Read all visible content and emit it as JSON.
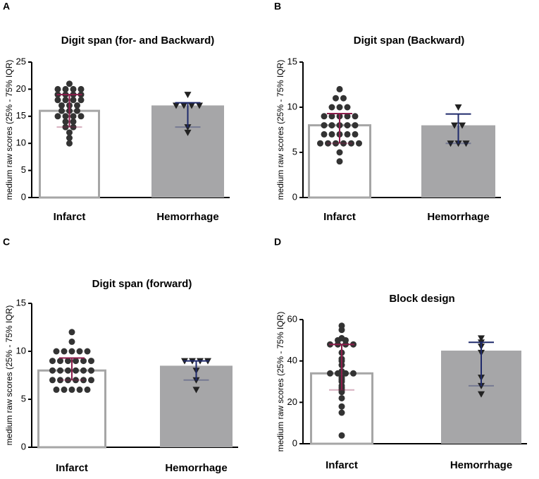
{
  "chart_data": [
    {
      "type": "bar",
      "panel": "A",
      "title": "Digit span (for- and Backward)",
      "y_label": "medium raw scores (25% - 75% IQR)",
      "categories": [
        "Infarct",
        "Hemorrhage"
      ],
      "values": [
        16,
        17
      ],
      "iqr_low": [
        13,
        13
      ],
      "iqr_high": [
        19,
        17.5
      ],
      "points": [
        [
          21,
          20,
          20,
          20,
          20,
          19,
          19,
          19,
          19,
          18,
          18,
          18,
          18,
          17,
          17,
          17,
          16,
          16,
          16,
          15,
          15,
          15,
          15,
          14,
          14,
          13,
          13,
          12,
          11,
          10
        ],
        [
          19,
          17,
          17,
          17,
          17,
          13,
          12
        ]
      ],
      "ylim": [
        0,
        25
      ],
      "yticks": [
        0,
        5,
        10,
        15,
        20,
        25
      ],
      "bar_colors": [
        "#ffffff",
        "#a6a6a8"
      ],
      "error_colors": [
        "#8c1d4b",
        "#1f2a6b"
      ]
    },
    {
      "type": "bar",
      "panel": "B",
      "title": "Digit span (Backward)",
      "y_label": "medium raw scores (25% - 75% IQR)",
      "categories": [
        "Infarct",
        "Hemorrhage"
      ],
      "values": [
        8,
        8
      ],
      "iqr_low": [
        6,
        6
      ],
      "iqr_high": [
        9.3,
        9.25
      ],
      "points": [
        [
          12,
          11,
          11,
          10,
          10,
          10,
          9,
          9,
          9,
          9,
          9,
          8,
          8,
          8,
          8,
          8,
          7,
          7,
          7,
          7,
          7,
          6,
          6,
          6,
          6,
          6,
          6,
          5,
          4
        ],
        [
          10,
          8,
          8,
          6,
          6,
          6
        ]
      ],
      "ylim": [
        0,
        15
      ],
      "yticks": [
        0,
        5,
        10,
        15
      ],
      "bar_colors": [
        "#ffffff",
        "#a6a6a8"
      ],
      "error_colors": [
        "#8c1d4b",
        "#1f2a6b"
      ]
    },
    {
      "type": "bar",
      "panel": "C",
      "title": "Digit span (forward)",
      "y_label": "medium raw scores (25% - 75% IQR)",
      "categories": [
        "Infarct",
        "Hemorrhage"
      ],
      "values": [
        8,
        8.5
      ],
      "iqr_low": [
        7,
        7
      ],
      "iqr_high": [
        9.3,
        9
      ],
      "points": [
        [
          12,
          11,
          10,
          10,
          10,
          10,
          10,
          9,
          9,
          9,
          9,
          9,
          9,
          8,
          8,
          8,
          8,
          8,
          8,
          7,
          7,
          7,
          7,
          7,
          7,
          6,
          6,
          6,
          6,
          6
        ],
        [
          9,
          9,
          9,
          9,
          8,
          7,
          6
        ]
      ],
      "ylim": [
        0,
        15
      ],
      "yticks": [
        0,
        5,
        10,
        15
      ],
      "bar_colors": [
        "#ffffff",
        "#a6a6a8"
      ],
      "error_colors": [
        "#8c1d4b",
        "#1f2a6b"
      ]
    },
    {
      "type": "bar",
      "panel": "D",
      "title": "Block design",
      "y_label": "medium raw scores (25% - 75% IQR)",
      "categories": [
        "Infarct",
        "Hemorrhage"
      ],
      "values": [
        34,
        45
      ],
      "iqr_low": [
        26,
        28
      ],
      "iqr_high": [
        48,
        49
      ],
      "points": [
        [
          57,
          55,
          51,
          50,
          50,
          48,
          48,
          48,
          48,
          44,
          41,
          40,
          38,
          35,
          34,
          34,
          34,
          34,
          32,
          31,
          30,
          28,
          27,
          26,
          25,
          22,
          18,
          15,
          4
        ],
        [
          51,
          49,
          47,
          44,
          32,
          28,
          24
        ]
      ],
      "ylim": [
        0,
        60
      ],
      "yticks": [
        0,
        20,
        40,
        60
      ],
      "bar_colors": [
        "#ffffff",
        "#a6a6a8"
      ],
      "error_colors": [
        "#8c1d4b",
        "#1f2a6b"
      ]
    }
  ]
}
